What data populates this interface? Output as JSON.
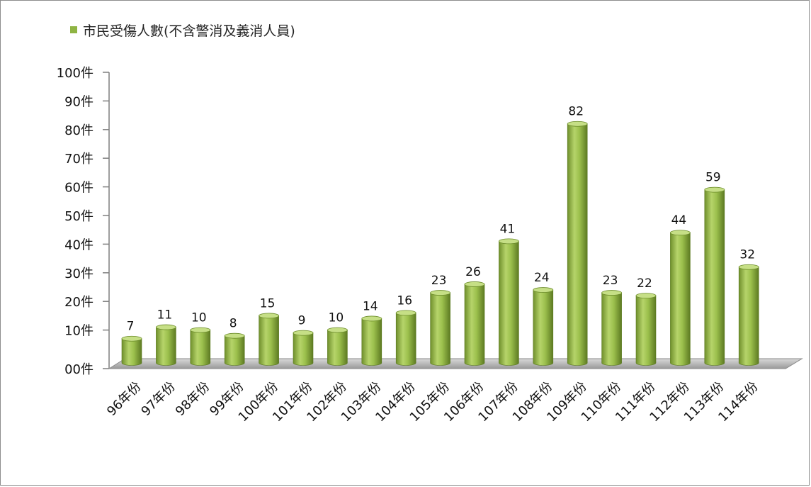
{
  "chart_data": {
    "type": "bar",
    "legend": {
      "label": "市民受傷人數(不含警消及義消人員)",
      "color": "#8fb444",
      "placement": "top-left"
    },
    "categories": [
      "96年份",
      "97年份",
      "98年份",
      "99年份",
      "100年份",
      "101年份",
      "102年份",
      "103年份",
      "104年份",
      "105年份",
      "106年份",
      "107年份",
      "108年份",
      "109年份",
      "110年份",
      "111年份",
      "112年份",
      "113年份",
      "114年份"
    ],
    "values": [
      7,
      11,
      10,
      8,
      15,
      9,
      10,
      14,
      16,
      23,
      26,
      41,
      24,
      82,
      23,
      22,
      44,
      59,
      32
    ],
    "data_labels": [
      "7",
      "11",
      "10",
      "8",
      "15",
      "9",
      "10",
      "14",
      "16",
      "23",
      "26",
      "41",
      "24",
      "82",
      "23",
      "22",
      "44",
      "59",
      "32"
    ],
    "ylim": [
      0,
      100
    ],
    "yticks": [
      0,
      10,
      20,
      30,
      40,
      50,
      60,
      70,
      80,
      90,
      100
    ],
    "ytick_labels": [
      "00件",
      "10件",
      "20件",
      "30件",
      "40件",
      "50件",
      "60件",
      "70件",
      "80件",
      "90件",
      "100件"
    ],
    "grid": false,
    "style": "3d-cylinder"
  }
}
